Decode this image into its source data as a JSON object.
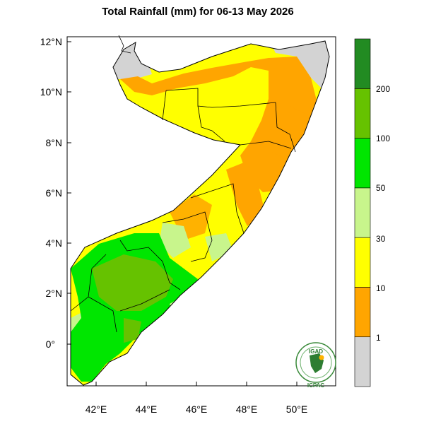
{
  "title": "Total Rainfall (mm) for 06-13 May 2026",
  "map": {
    "y_ticks": [
      "12°N",
      "10°N",
      "8°N",
      "6°N",
      "4°N",
      "2°N",
      "0°"
    ],
    "x_ticks": [
      "42°E",
      "44°E",
      "46°E",
      "48°E",
      "50°E"
    ]
  },
  "legend": {
    "unit": "mm",
    "bins": [
      {
        "range": "<1",
        "color": "#d3d3d3"
      },
      {
        "range": "1-10",
        "color": "#ffa500"
      },
      {
        "range": "10-30",
        "color": "#ffff00"
      },
      {
        "range": "30-50",
        "color": "#c8f58c"
      },
      {
        "range": "50-100",
        "color": "#00e600"
      },
      {
        "range": "100-200",
        "color": "#66c200"
      },
      {
        "range": ">200",
        "color": "#228b22"
      }
    ],
    "labels": [
      "1",
      "10",
      "30",
      "50",
      "100",
      "200"
    ]
  },
  "logo": {
    "top_text": "IGAD",
    "bottom_text": "ICPAC"
  }
}
